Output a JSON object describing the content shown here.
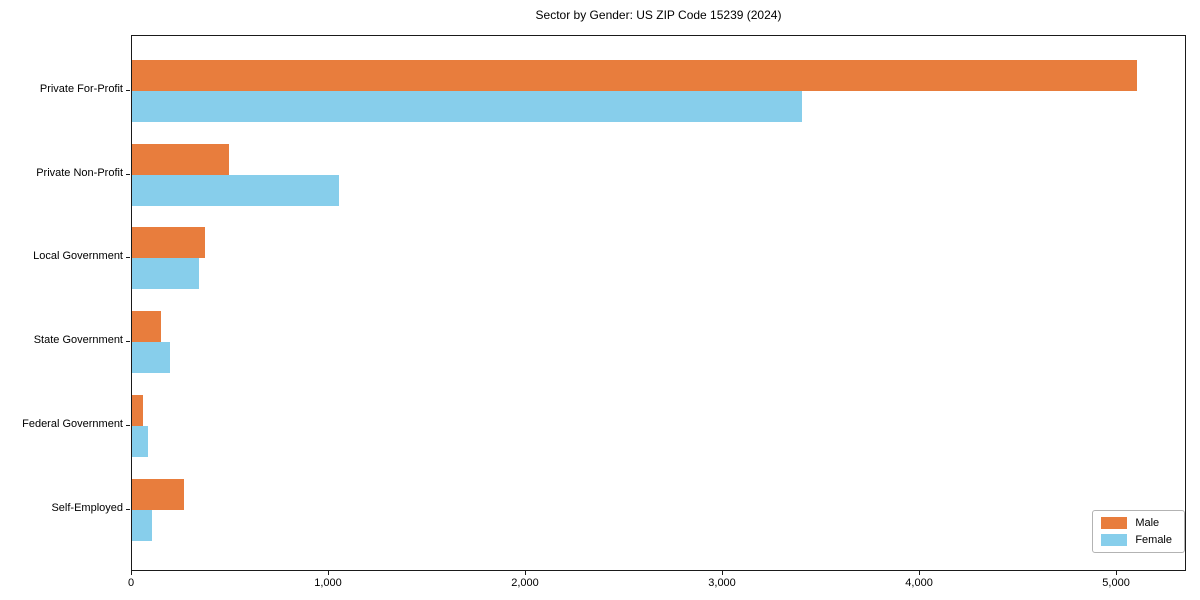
{
  "chart_data": {
    "type": "bar",
    "orientation": "horizontal",
    "title": "Sector by Gender: US ZIP Code 15239 (2024)",
    "categories": [
      "Private For-Profit",
      "Private Non-Profit",
      "Local Government",
      "State Government",
      "Federal Government",
      "Self-Employed"
    ],
    "series": [
      {
        "name": "Male",
        "color": "#E87D3D",
        "values": [
          5100,
          490,
          370,
          145,
          55,
          265
        ]
      },
      {
        "name": "Female",
        "color": "#87CEEB",
        "values": [
          3400,
          1050,
          340,
          195,
          80,
          100
        ]
      }
    ],
    "xlabel": "",
    "ylabel": "",
    "xlim": [
      0,
      5355
    ],
    "xticks": [
      0,
      1000,
      2000,
      3000,
      4000,
      5000
    ],
    "xtick_labels": [
      "0",
      "1,000",
      "2,000",
      "3,000",
      "4,000",
      "5,000"
    ],
    "grid": false,
    "legend": {
      "position": "lower right",
      "entries": [
        "Male",
        "Female"
      ]
    }
  }
}
